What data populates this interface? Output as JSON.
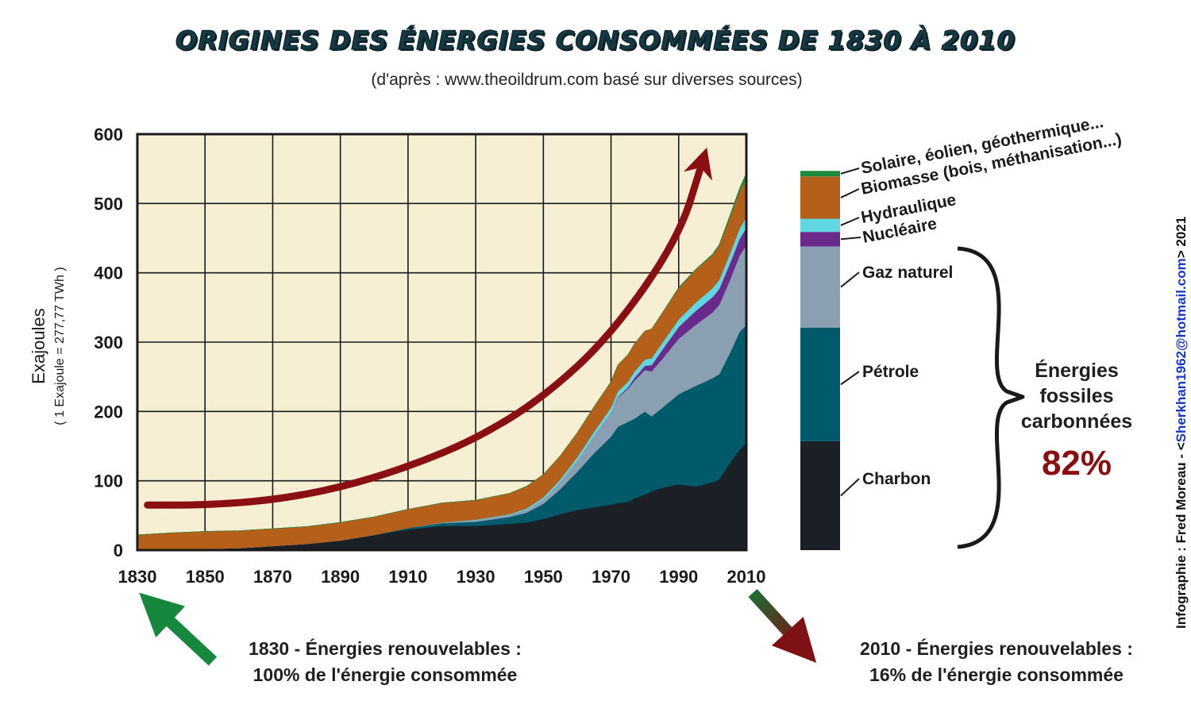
{
  "title": "ORIGINES DES ÉNERGIES CONSOMMÉES DE 1830 À 2010",
  "subtitle": "(d'après : www.theoildrum.com basé sur diverses sources)",
  "credit": {
    "prefix": "Infographie : Fred Moreau - <",
    "email": "Sherkhan1962@hotmail.com",
    "suffix": "> 2021"
  },
  "colors": {
    "background_plot": "#f6efd4",
    "charbon": "#1b1f26",
    "petrole": "#005a69",
    "gaz": "#8b9fb2",
    "nucleaire": "#6a2a8c",
    "hydraulique": "#5fd6e0",
    "biomasse": "#b5601a",
    "solaire": "#1c8a3c",
    "trend_arrow": "#8a0f13",
    "arrow_left": "#16883e",
    "pct": "#8a0f13"
  },
  "chart_data": {
    "type": "area",
    "stacked": true,
    "ylabel": "Exajoules",
    "ylabel_sub": "( 1 Exajoule = 277,77 TWh )",
    "ylim": [
      0,
      600
    ],
    "xlim": [
      1830,
      2010
    ],
    "y_ticks": [
      "0",
      "100",
      "200",
      "300",
      "400",
      "500",
      "600"
    ],
    "x_ticks": [
      "1830",
      "1850",
      "1870",
      "1890",
      "1910",
      "1930",
      "1950",
      "1970",
      "1990",
      "2010"
    ],
    "grid": true,
    "x": [
      1830,
      1840,
      1850,
      1860,
      1870,
      1880,
      1890,
      1900,
      1910,
      1920,
      1930,
      1940,
      1945,
      1950,
      1955,
      1960,
      1965,
      1970,
      1972,
      1975,
      1977,
      1980,
      1982,
      1985,
      1990,
      1995,
      2000,
      2002,
      2005,
      2008,
      2010
    ],
    "series": [
      {
        "name": "Charbon",
        "values": [
          0,
          1,
          2,
          3,
          6,
          9,
          14,
          22,
          30,
          35,
          35,
          38,
          40,
          45,
          52,
          58,
          62,
          66,
          68,
          70,
          75,
          80,
          85,
          90,
          95,
          92,
          98,
          102,
          125,
          145,
          155
        ]
      },
      {
        "name": "Pétrole",
        "values": [
          0,
          0,
          0,
          0,
          0,
          0,
          0,
          0,
          2,
          4,
          6,
          10,
          14,
          22,
          36,
          55,
          78,
          98,
          110,
          115,
          115,
          120,
          108,
          115,
          130,
          145,
          150,
          152,
          158,
          170,
          170
        ]
      },
      {
        "name": "Gaz naturel",
        "values": [
          0,
          0,
          0,
          0,
          0,
          0,
          0,
          0,
          0,
          1,
          2,
          3,
          4,
          6,
          10,
          16,
          25,
          35,
          42,
          48,
          55,
          60,
          65,
          70,
          80,
          88,
          95,
          100,
          105,
          110,
          115
        ]
      },
      {
        "name": "Nucléaire",
        "values": [
          0,
          0,
          0,
          0,
          0,
          0,
          0,
          0,
          0,
          0,
          0,
          0,
          0,
          0,
          0,
          0,
          0,
          0,
          1,
          2,
          4,
          6,
          9,
          13,
          17,
          20,
          22,
          23,
          24,
          24,
          25
        ]
      },
      {
        "name": "Hydraulique",
        "values": [
          0,
          0,
          0,
          0,
          0,
          0,
          0,
          0,
          0,
          0,
          1,
          1,
          2,
          3,
          4,
          5,
          6,
          7,
          8,
          8,
          9,
          9,
          10,
          10,
          11,
          12,
          13,
          13,
          14,
          15,
          16
        ]
      },
      {
        "name": "Biomasse (bois, méthanisation...)",
        "values": [
          22,
          24,
          25,
          25,
          25,
          25,
          26,
          26,
          27,
          28,
          28,
          30,
          32,
          33,
          34,
          35,
          36,
          37,
          38,
          39,
          40,
          41,
          42,
          43,
          45,
          47,
          48,
          49,
          52,
          54,
          55
        ]
      },
      {
        "name": "Solaire, éolien, géothermique...",
        "values": [
          0,
          0,
          0,
          0,
          0,
          0,
          0,
          0,
          0,
          0,
          0,
          0,
          0,
          0,
          0,
          0,
          0,
          0,
          0,
          0,
          0,
          0,
          0,
          0,
          1,
          1,
          1,
          2,
          3,
          4,
          8
        ]
      }
    ],
    "trend_arrow": {
      "x": [
        1833,
        1850,
        1870,
        1890,
        1910,
        1930,
        1950,
        1970,
        1990,
        1997
      ],
      "y": [
        65,
        65,
        72,
        90,
        120,
        160,
        220,
        310,
        450,
        560
      ]
    },
    "stack_2010": {
      "labels": [
        "Charbon",
        "Pétrole",
        "Gaz naturel",
        "Nucléaire",
        "Hydraulique",
        "Biomasse (bois, méthanisation...)",
        "Solaire, éolien, géothermique..."
      ],
      "values": [
        157,
        164,
        117,
        21,
        19,
        61,
        8
      ]
    }
  },
  "fossil_brace": {
    "label_line1": "Énergies",
    "label_line2": "fossiles",
    "label_line3": "carbonnées",
    "percent": "82%"
  },
  "notes": {
    "left_line1": "1830 - Énergies renouvelables :",
    "left_line2": "100% de l'énergie consommée",
    "right_line1": "2010 - Énergies renouvelables :",
    "right_line2": "16% de l'énergie consommée"
  }
}
